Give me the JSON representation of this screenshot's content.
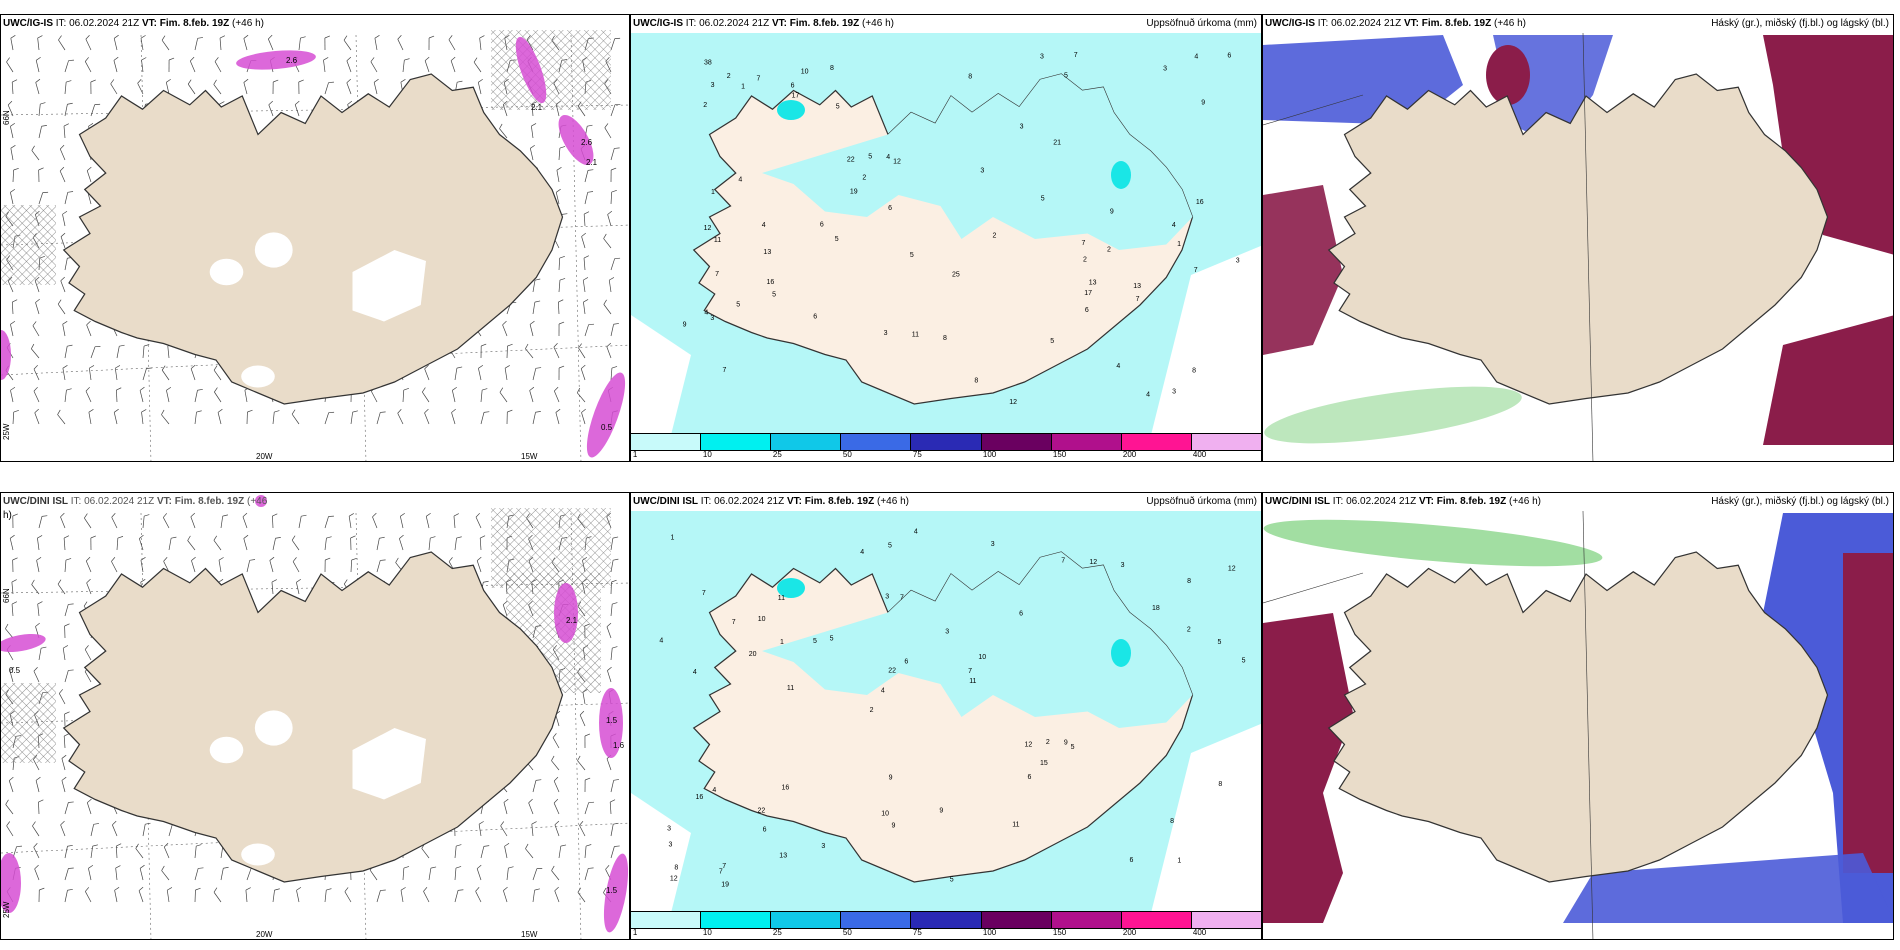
{
  "colors": {
    "land": "#e9dcc9",
    "land_light": "#fbefe3",
    "precip_light": "#b5f7f7",
    "precip_cyan": "#1ae6e6",
    "pink": "#d64ed3",
    "blue": "#4b5bd8",
    "maroon": "#8b1d4a",
    "green": "#7bd07b"
  },
  "rows": [
    {
      "panels": [
        {
          "model": "UWC/IG-IS",
          "it_label": "IT: 06.02.2024 21Z",
          "vt_label": "VT: Fim. 8.feb. 19Z",
          "lead": "(+46 h)",
          "right_title": "",
          "lat_label": "66N",
          "lat_label2": "25W",
          "lon_labels": [
            "20W",
            "15W"
          ],
          "numbers": [
            "2.6",
            "2.1",
            "2.6",
            "2.1",
            "0.5"
          ]
        },
        {
          "model": "UWC/IG-IS",
          "it_label": "IT: 06.02.2024 21Z",
          "vt_label": "VT: Fim. 8.feb. 19Z",
          "lead": "(+46 h)",
          "right_title": "Uppsöfnuð úrkoma (mm)",
          "numbers": [
            "2",
            "1",
            "7",
            "10",
            "12",
            "4",
            "3",
            "5",
            "22",
            "12",
            "2",
            "12",
            "3",
            "8",
            "3",
            "16",
            "25",
            "2",
            "4",
            "5",
            "6",
            "3",
            "19",
            "7",
            "3",
            "6",
            "13",
            "11",
            "17",
            "9",
            "8",
            "5",
            "2",
            "5",
            "4",
            "7",
            "17",
            "4",
            "8",
            "5",
            "9",
            "7",
            "3",
            "11",
            "13",
            "6",
            "9",
            "2",
            "5",
            "1",
            "3",
            "5",
            "4",
            "7",
            "6",
            "4",
            "21",
            "38",
            "13",
            "7",
            "2",
            "5",
            "3",
            "7",
            "8",
            "4",
            "5",
            "16",
            "6",
            "4",
            "3",
            "8",
            "6",
            "1"
          ]
        },
        {
          "model": "UWC/IG-IS",
          "it_label": "IT: 06.02.2024 21Z",
          "vt_label": "VT: Fim. 8.feb. 19Z",
          "lead": "(+46 h)",
          "right_title": "Háský (gr.), miðský (fj.bl.) og lágský (bl.)"
        }
      ]
    },
    {
      "panels": [
        {
          "model": "UWC/DINI ISL",
          "it_label": "IT: 06.02.2024 21Z",
          "vt_label": "VT: Fim. 8.feb. 19Z",
          "lead": "(+46",
          "lead_wrap": "h)",
          "right_title": "",
          "lat_label": "66N",
          "lat_label2": "25W",
          "lon_labels": [
            "20W",
            "15W"
          ],
          "numbers": [
            "0.5",
            "2.1",
            "1.5",
            "1.6",
            "1.5"
          ]
        },
        {
          "model": "UWC/DINI ISL",
          "it_label": "IT: 06.02.2024 21Z",
          "vt_label": "VT: Fim. 8.feb. 19Z",
          "lead": "(+46 h)",
          "right_title": "Uppsöfnuð úrkoma (mm)",
          "numbers": [
            "1",
            "4",
            "8",
            "2",
            "6",
            "7",
            "3",
            "3",
            "4",
            "5",
            "3",
            "6",
            "7",
            "10",
            "5",
            "7",
            "5",
            "5",
            "12",
            "2",
            "4",
            "10",
            "22",
            "11",
            "7",
            "16",
            "6",
            "8",
            "9",
            "5",
            "5",
            "20",
            "6",
            "13",
            "5",
            "7",
            "8",
            "9",
            "11",
            "16",
            "18",
            "12",
            "15",
            "11",
            "22",
            "19",
            "12",
            "9",
            "3",
            "4",
            "11",
            "4",
            "10",
            "12",
            "7",
            "3",
            "4",
            "6",
            "8",
            "9",
            "3",
            "2",
            "1",
            "3",
            "1",
            "7"
          ]
        },
        {
          "model": "UWC/DINI ISL",
          "it_label": "IT: 06.02.2024 21Z",
          "vt_label": "VT: Fim. 8.feb. 19Z",
          "lead": "(+46 h)",
          "right_title": "Háský (gr.), miðský (fj.bl.) og lágský (bl.)"
        }
      ]
    }
  ],
  "colorbar": {
    "colors": [
      "#c8fafa",
      "#00f0f0",
      "#10c8e8",
      "#3a6ae6",
      "#2a2ab4",
      "#6a0060",
      "#b0108c",
      "#ff1493",
      "#f0b0f0"
    ],
    "ticks": [
      "1",
      "10",
      "25",
      "50",
      "75",
      "100",
      "150",
      "200",
      "400"
    ]
  }
}
